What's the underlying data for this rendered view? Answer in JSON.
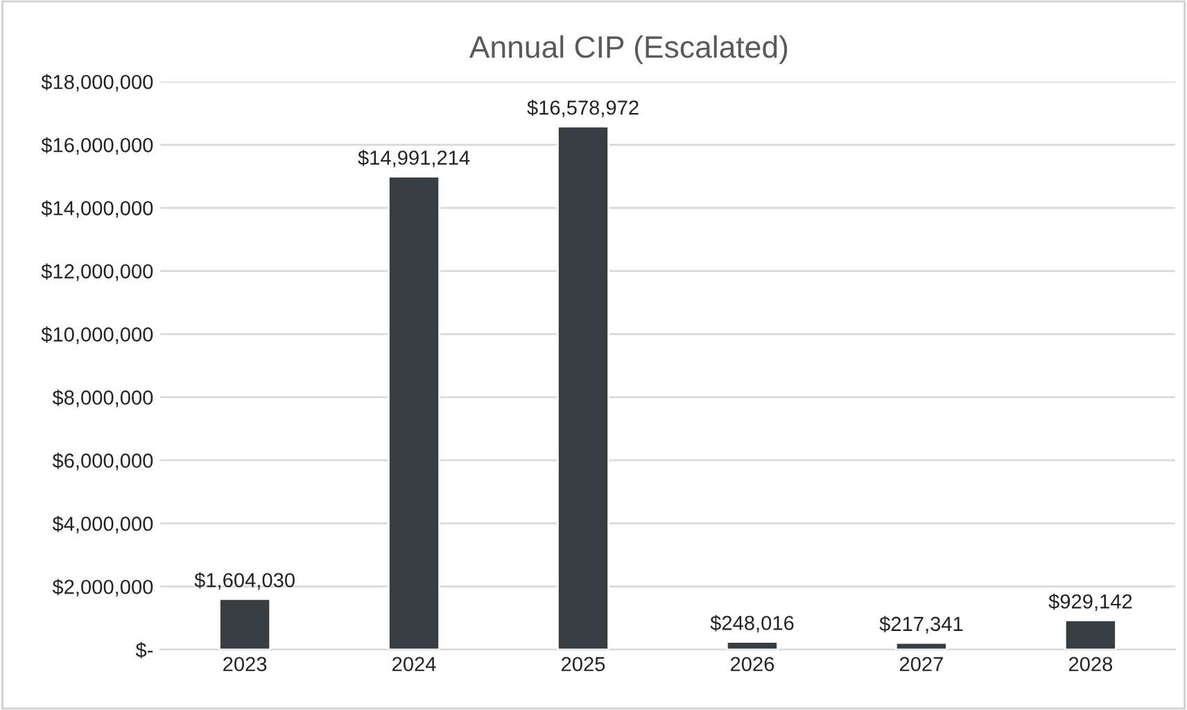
{
  "chart_data": {
    "type": "bar",
    "title": "Annual CIP (Escalated)",
    "categories": [
      "2023",
      "2024",
      "2025",
      "2026",
      "2027",
      "2028"
    ],
    "values": [
      1604030,
      14991214,
      16578972,
      248016,
      217341,
      929142
    ],
    "value_labels": [
      "$1,604,030",
      "$14,991,214",
      "$16,578,972",
      "$248,016",
      "$217,341",
      "$929,142"
    ],
    "color": "#373d40",
    "ylim": [
      0,
      18000000
    ],
    "yticks": [
      {
        "value": 0,
        "label": "$-"
      },
      {
        "value": 2000000,
        "label": "$2,000,000"
      },
      {
        "value": 4000000,
        "label": "$4,000,000"
      },
      {
        "value": 6000000,
        "label": "$6,000,000"
      },
      {
        "value": 8000000,
        "label": "$8,000,000"
      },
      {
        "value": 10000000,
        "label": "$10,000,000"
      },
      {
        "value": 12000000,
        "label": "$12,000,000"
      },
      {
        "value": 14000000,
        "label": "$14,000,000"
      },
      {
        "value": 16000000,
        "label": "$16,000,000"
      },
      {
        "value": 18000000,
        "label": "$18,000,000"
      }
    ],
    "grid": "y"
  }
}
